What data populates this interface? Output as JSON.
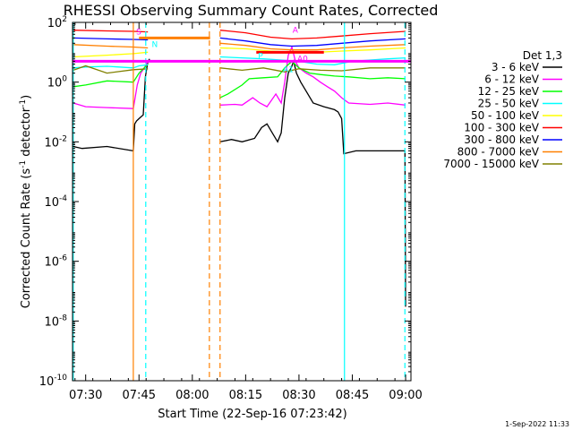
{
  "chart_data": {
    "type": "line",
    "title": "RHESSI Observing Summary Count Rates, Corrected",
    "xlabel": "Start Time (22-Sep-16 07:23:42)",
    "ylabel_main": "Corrected Count Rate (s",
    "ylabel_sup1": "-1",
    "ylabel_mid": " detector",
    "ylabel_sup2": "-1",
    "ylabel_end": ")",
    "y_scale": "log",
    "ylim": [
      1e-10,
      100
    ],
    "xlim_minutes": [
      -3.7,
      91.5
    ],
    "x_tick_labels": [
      "07:30",
      "07:45",
      "08:00",
      "08:15",
      "08:30",
      "08:45",
      "09:00"
    ],
    "x_tick_minutes": [
      0,
      15,
      30,
      45,
      60,
      75,
      90
    ],
    "y_ticks": [
      {
        "exp": 2,
        "val": 100
      },
      {
        "exp": 0,
        "val": 1
      },
      {
        "exp": -2,
        "val": 0.01
      },
      {
        "exp": -4,
        "val": 0.0001
      },
      {
        "exp": -6,
        "val": 1e-06
      },
      {
        "exp": -8,
        "val": 1e-08
      },
      {
        "exp": -10,
        "val": 1e-10
      }
    ],
    "legend_title": "Det 1,3",
    "legend_position": "right",
    "series": [
      {
        "name": "3 - 6 keV",
        "color": "#000000",
        "points": [
          [
            -3.5,
            0.007
          ],
          [
            -1,
            0.006
          ],
          [
            6,
            0.007
          ],
          [
            13.4,
            0.005
          ],
          [
            13.8,
            0.04
          ],
          [
            14.3,
            0.05
          ],
          [
            15,
            0.06
          ],
          [
            16.2,
            0.08
          ],
          [
            16.8,
            1.5
          ],
          [
            17.5,
            5
          ],
          [
            18,
            6
          ],
          [
            null,
            null
          ],
          [
            37.8,
            0.01
          ],
          [
            41,
            0.012
          ],
          [
            44,
            0.01
          ],
          [
            47.5,
            0.013
          ],
          [
            49.5,
            0.03
          ],
          [
            51,
            0.04
          ],
          [
            52.5,
            0.02
          ],
          [
            54,
            0.01
          ],
          [
            55,
            0.02
          ],
          [
            56,
            0.3
          ],
          [
            57,
            2
          ],
          [
            57.8,
            3
          ],
          [
            58.5,
            5
          ],
          [
            59.3,
            2
          ],
          [
            60.5,
            1
          ],
          [
            62,
            0.5
          ],
          [
            64,
            0.2
          ],
          [
            67,
            0.15
          ],
          [
            70,
            0.12
          ],
          [
            71,
            0.1
          ],
          [
            72,
            0.06
          ],
          [
            72.6,
            0.004
          ],
          [
            76,
            0.005
          ],
          [
            81,
            0.005
          ],
          [
            85,
            0.005
          ],
          [
            89.8,
            0.005
          ],
          [
            90,
            3e-08
          ]
        ]
      },
      {
        "name": "6 - 12 keV",
        "color": "#ff00ff",
        "points": [
          [
            -3.5,
            0.2
          ],
          [
            0,
            0.15
          ],
          [
            6,
            0.14
          ],
          [
            13.4,
            0.13
          ],
          [
            14.5,
            0.8
          ],
          [
            15.5,
            2
          ],
          [
            16.5,
            3
          ],
          [
            17.5,
            5
          ],
          [
            null,
            null
          ],
          [
            37.8,
            0.17
          ],
          [
            42,
            0.18
          ],
          [
            44,
            0.17
          ],
          [
            47,
            0.3
          ],
          [
            49,
            0.2
          ],
          [
            51,
            0.15
          ],
          [
            53.5,
            0.4
          ],
          [
            55,
            0.2
          ],
          [
            56,
            1
          ],
          [
            57,
            8
          ],
          [
            58,
            15
          ],
          [
            59,
            5
          ],
          [
            60,
            3
          ],
          [
            62,
            2
          ],
          [
            64,
            1.5
          ],
          [
            66,
            1
          ],
          [
            68,
            0.7
          ],
          [
            70,
            0.5
          ],
          [
            72,
            0.3
          ],
          [
            74,
            0.2
          ],
          [
            80,
            0.18
          ],
          [
            85,
            0.2
          ],
          [
            90,
            0.17
          ]
        ]
      },
      {
        "name": "12 - 25 keV",
        "color": "#00ff00",
        "points": [
          [
            -3.5,
            0.7
          ],
          [
            0,
            0.8
          ],
          [
            6,
            1.1
          ],
          [
            13.4,
            1
          ],
          [
            15,
            2
          ],
          [
            17.5,
            4
          ],
          [
            null,
            null
          ],
          [
            37.8,
            0.3
          ],
          [
            40,
            0.4
          ],
          [
            44,
            0.8
          ],
          [
            46,
            1.3
          ],
          [
            50,
            1.4
          ],
          [
            54,
            1.5
          ],
          [
            56,
            3
          ],
          [
            58,
            5
          ],
          [
            60,
            3
          ],
          [
            63,
            2
          ],
          [
            66,
            1.8
          ],
          [
            70,
            1.6
          ],
          [
            74,
            1.5
          ],
          [
            80,
            1.3
          ],
          [
            85,
            1.4
          ],
          [
            90,
            1.3
          ]
        ]
      },
      {
        "name": "25 - 50 keV",
        "color": "#00ffff",
        "points": [
          [
            -3.5,
            3
          ],
          [
            0,
            3.2
          ],
          [
            6,
            3.4
          ],
          [
            13.4,
            3
          ],
          [
            15,
            3.5
          ],
          [
            17.5,
            3.8
          ],
          [
            null,
            null
          ],
          [
            37.8,
            7
          ],
          [
            44,
            6.5
          ],
          [
            50,
            6
          ],
          [
            55,
            5.5
          ],
          [
            60,
            5
          ],
          [
            65,
            4
          ],
          [
            70,
            3.8
          ],
          [
            75,
            5
          ],
          [
            80,
            5.5
          ],
          [
            85,
            6
          ],
          [
            90,
            6.5
          ]
        ]
      },
      {
        "name": "50 - 100 keV",
        "color": "#ffff00",
        "points": [
          [
            -3.5,
            7
          ],
          [
            6,
            8
          ],
          [
            13.4,
            9
          ],
          [
            17.5,
            10
          ],
          [
            null,
            null
          ],
          [
            37.8,
            14
          ],
          [
            45,
            13
          ],
          [
            52,
            11
          ],
          [
            58,
            10
          ],
          [
            65,
            10
          ],
          [
            72,
            11
          ],
          [
            80,
            12
          ],
          [
            90,
            14
          ]
        ]
      },
      {
        "name": "100 - 300 keV",
        "color": "#ff0000",
        "points": [
          [
            -3.5,
            55
          ],
          [
            6,
            52
          ],
          [
            13.4,
            50
          ],
          [
            17.5,
            48
          ],
          [
            null,
            null
          ],
          [
            37.8,
            55
          ],
          [
            45,
            45
          ],
          [
            52,
            32
          ],
          [
            58,
            28
          ],
          [
            65,
            30
          ],
          [
            72,
            35
          ],
          [
            80,
            42
          ],
          [
            90,
            50
          ]
        ]
      },
      {
        "name": "300 - 800 keV",
        "color": "#0000ff",
        "points": [
          [
            -3.5,
            30
          ],
          [
            6,
            28
          ],
          [
            13.4,
            27
          ],
          [
            17.5,
            26
          ],
          [
            null,
            null
          ],
          [
            37.8,
            30
          ],
          [
            45,
            24
          ],
          [
            52,
            18
          ],
          [
            58,
            16
          ],
          [
            65,
            17
          ],
          [
            72,
            20
          ],
          [
            80,
            24
          ],
          [
            90,
            28
          ]
        ]
      },
      {
        "name": "800 - 7000 keV",
        "color": "#ff8000",
        "points": [
          [
            -3.5,
            18
          ],
          [
            6,
            16
          ],
          [
            13.4,
            15
          ],
          [
            17.5,
            14
          ],
          [
            null,
            null
          ],
          [
            37.8,
            20
          ],
          [
            45,
            17
          ],
          [
            52,
            13
          ],
          [
            58,
            12
          ],
          [
            65,
            12
          ],
          [
            72,
            14
          ],
          [
            80,
            16
          ],
          [
            90,
            18
          ]
        ]
      },
      {
        "name": "7000 - 15000 keV",
        "color": "#808000",
        "points": [
          [
            -3.5,
            2.5
          ],
          [
            0,
            3.5
          ],
          [
            6,
            2
          ],
          [
            13.4,
            2.6
          ],
          [
            17.5,
            2.8
          ],
          [
            null,
            null
          ],
          [
            37.8,
            3
          ],
          [
            44,
            2.5
          ],
          [
            50,
            3
          ],
          [
            56,
            2.2
          ],
          [
            60,
            2.8
          ],
          [
            66,
            2.5
          ],
          [
            72,
            2.4
          ],
          [
            80,
            3
          ],
          [
            90,
            3
          ]
        ]
      }
    ],
    "flag_lines": [
      {
        "color": "#ff00ff",
        "start": -3.7,
        "end": 91.5,
        "level": 5
      },
      {
        "color": "#ff8000",
        "start": 15,
        "end": 35,
        "level": 30
      },
      {
        "color": "#ff0000",
        "start": 48,
        "end": 67,
        "level": 10
      }
    ],
    "vertical_lines": [
      {
        "minute": -3.5,
        "color": "#00ffff",
        "style": "solid"
      },
      {
        "minute": 13.4,
        "color": "#ff8000",
        "style": "solid"
      },
      {
        "minute": 16.9,
        "color": "#00ffff",
        "style": "dashed"
      },
      {
        "minute": 34.8,
        "color": "#ff8000",
        "style": "dashed"
      },
      {
        "minute": 37.8,
        "color": "#ff8000",
        "style": "dashed"
      },
      {
        "minute": 72.8,
        "color": "#00ffff",
        "style": "solid"
      },
      {
        "minute": 89.8,
        "color": "#00ffff",
        "style": "dashed"
      }
    ],
    "annotations": [
      {
        "text": "N",
        "minute": 18.6,
        "val": 15,
        "color": "#00ffff"
      },
      {
        "text": "S",
        "minute": 14.2,
        "val": 40,
        "color": "#ff00ff"
      },
      {
        "text": "A",
        "minute": 58.2,
        "val": 45,
        "color": "#ff00ff"
      },
      {
        "text": "A1",
        "minute": 55.5,
        "val": 2.2,
        "color": "#00ffff"
      },
      {
        "text": "A0",
        "minute": 59.5,
        "val": 5,
        "color": "#ff00ff"
      },
      {
        "text": "P",
        "minute": 48.5,
        "val": 6,
        "color": "#00ffff"
      }
    ]
  },
  "footer_timestamp": "1-Sep-2022 11:33"
}
